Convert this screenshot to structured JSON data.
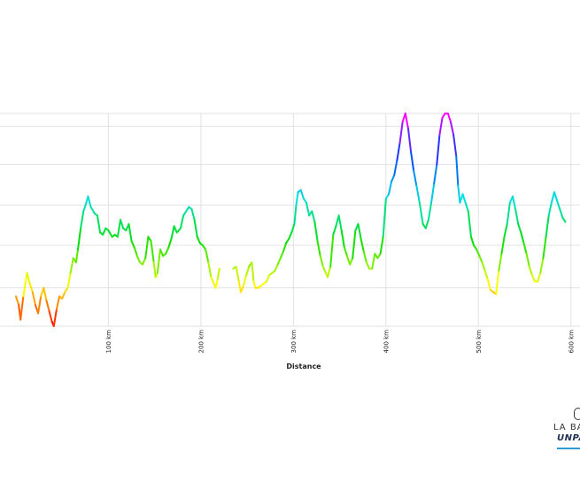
{
  "chart_data": {
    "type": "line",
    "title": "",
    "xlabel": "Distance",
    "ylabel": "",
    "x_unit": "km",
    "xlim": [
      0,
      605
    ],
    "ylim": [
      0,
      100
    ],
    "grid": true,
    "x_ticks": [
      {
        "value": 100,
        "label": "100 km"
      },
      {
        "value": 200,
        "label": "200 km"
      },
      {
        "value": 300,
        "label": "300 km"
      },
      {
        "value": 400,
        "label": "400 km"
      },
      {
        "value": 500,
        "label": "500 km"
      },
      {
        "value": 600,
        "label": "600 km"
      }
    ],
    "y_gridlines": [
      0,
      18,
      38,
      57,
      76,
      94,
      100
    ],
    "color_scale": [
      "#ff0000",
      "#ffff00",
      "#00e000",
      "#00e0e0",
      "#0040ff",
      "#ff00ff"
    ],
    "series": [
      {
        "points": [
          [
            0,
            14
          ],
          [
            3,
            10
          ],
          [
            5,
            3
          ],
          [
            8,
            14
          ],
          [
            12,
            25
          ],
          [
            15,
            20
          ],
          [
            18,
            16
          ],
          [
            21,
            10
          ],
          [
            24,
            6
          ],
          [
            27,
            14
          ],
          [
            30,
            18
          ],
          [
            33,
            12
          ],
          [
            36,
            7
          ],
          [
            39,
            2
          ],
          [
            41,
            0
          ],
          [
            44,
            8
          ],
          [
            47,
            14
          ],
          [
            50,
            13
          ],
          [
            53,
            16
          ],
          [
            56,
            18
          ],
          [
            59,
            25
          ],
          [
            62,
            32
          ],
          [
            65,
            30
          ],
          [
            67,
            36
          ],
          [
            70,
            46
          ],
          [
            73,
            54
          ],
          [
            76,
            58
          ],
          [
            78,
            61
          ],
          [
            81,
            56
          ],
          [
            85,
            53
          ],
          [
            88,
            52
          ],
          [
            91,
            44
          ],
          [
            94,
            43
          ],
          [
            97,
            46
          ],
          [
            100,
            45
          ],
          [
            104,
            42
          ],
          [
            107,
            43
          ],
          [
            110,
            42
          ],
          [
            113,
            50
          ],
          [
            116,
            46
          ],
          [
            119,
            45
          ],
          [
            122,
            48
          ],
          [
            125,
            40
          ],
          [
            128,
            37
          ],
          [
            131,
            33
          ],
          [
            134,
            30
          ],
          [
            137,
            29
          ],
          [
            140,
            32
          ],
          [
            143,
            42
          ],
          [
            146,
            40
          ],
          [
            149,
            30
          ],
          [
            151,
            23
          ],
          [
            153,
            25
          ],
          [
            156,
            36
          ],
          [
            159,
            33
          ],
          [
            162,
            34
          ],
          [
            165,
            37
          ],
          [
            168,
            41
          ],
          [
            171,
            47
          ],
          [
            174,
            44
          ],
          [
            178,
            46
          ],
          [
            181,
            52
          ],
          [
            184,
            54
          ],
          [
            187,
            56
          ],
          [
            190,
            55
          ],
          [
            193,
            50
          ],
          [
            196,
            42
          ],
          [
            199,
            39
          ],
          [
            202,
            38
          ],
          [
            205,
            36
          ],
          [
            208,
            30
          ],
          [
            211,
            23
          ],
          [
            214,
            20
          ],
          [
            216,
            18
          ],
          [
            218,
            22
          ],
          [
            220,
            27
          ]
        ]
      },
      {
        "points": [
          [
            235,
            27
          ],
          [
            238,
            28
          ],
          [
            241,
            21
          ],
          [
            243,
            16
          ],
          [
            246,
            19
          ],
          [
            249,
            24
          ],
          [
            252,
            28
          ],
          [
            255,
            30
          ],
          [
            257,
            21
          ],
          [
            259,
            18
          ],
          [
            262,
            18
          ],
          [
            265,
            19
          ],
          [
            268,
            20
          ],
          [
            271,
            21
          ],
          [
            274,
            24
          ],
          [
            277,
            25
          ],
          [
            280,
            26
          ],
          [
            283,
            29
          ],
          [
            286,
            32
          ],
          [
            289,
            35
          ],
          [
            292,
            39
          ],
          [
            295,
            41
          ],
          [
            298,
            44
          ],
          [
            301,
            48
          ],
          [
            303,
            57
          ],
          [
            305,
            63
          ],
          [
            308,
            64
          ],
          [
            311,
            60
          ],
          [
            314,
            58
          ],
          [
            317,
            52
          ],
          [
            320,
            54
          ],
          [
            323,
            49
          ],
          [
            326,
            40
          ],
          [
            329,
            33
          ],
          [
            332,
            28
          ],
          [
            335,
            25
          ],
          [
            337,
            23
          ],
          [
            340,
            28
          ],
          [
            343,
            43
          ],
          [
            346,
            47
          ],
          [
            349,
            52
          ],
          [
            352,
            45
          ],
          [
            355,
            37
          ],
          [
            358,
            33
          ],
          [
            361,
            29
          ],
          [
            364,
            32
          ],
          [
            367,
            45
          ],
          [
            370,
            48
          ],
          [
            373,
            41
          ],
          [
            376,
            35
          ],
          [
            379,
            30
          ],
          [
            382,
            27
          ],
          [
            385,
            27
          ],
          [
            388,
            34
          ],
          [
            391,
            32
          ],
          [
            394,
            34
          ],
          [
            397,
            42
          ],
          [
            400,
            60
          ],
          [
            403,
            62
          ],
          [
            406,
            68
          ],
          [
            409,
            71
          ],
          [
            412,
            78
          ],
          [
            415,
            86
          ],
          [
            418,
            96
          ],
          [
            421,
            104
          ],
          [
            424,
            93
          ],
          [
            427,
            82
          ],
          [
            430,
            73
          ],
          [
            433,
            66
          ],
          [
            436,
            59
          ],
          [
            440,
            48
          ],
          [
            443,
            46
          ],
          [
            446,
            50
          ],
          [
            449,
            58
          ],
          [
            452,
            67
          ],
          [
            455,
            76
          ],
          [
            458,
            90
          ],
          [
            461,
            98
          ],
          [
            464,
            104
          ],
          [
            467,
            106
          ],
          [
            470,
            96
          ],
          [
            473,
            90
          ],
          [
            476,
            80
          ],
          [
            478,
            66
          ],
          [
            480,
            58
          ],
          [
            483,
            62
          ],
          [
            486,
            58
          ],
          [
            489,
            54
          ],
          [
            492,
            42
          ],
          [
            495,
            38
          ],
          [
            498,
            36
          ],
          [
            501,
            33
          ],
          [
            504,
            30
          ],
          [
            507,
            26
          ],
          [
            510,
            22
          ],
          [
            513,
            17
          ],
          [
            516,
            16
          ],
          [
            519,
            15
          ],
          [
            522,
            26
          ],
          [
            525,
            34
          ],
          [
            528,
            42
          ],
          [
            531,
            48
          ],
          [
            534,
            58
          ],
          [
            537,
            61
          ],
          [
            540,
            55
          ],
          [
            543,
            48
          ],
          [
            546,
            44
          ],
          [
            549,
            39
          ],
          [
            552,
            34
          ],
          [
            555,
            28
          ],
          [
            558,
            24
          ],
          [
            561,
            21
          ],
          [
            564,
            21
          ],
          [
            567,
            25
          ],
          [
            570,
            32
          ],
          [
            573,
            42
          ],
          [
            576,
            52
          ],
          [
            579,
            58
          ],
          [
            582,
            63
          ],
          [
            585,
            59
          ],
          [
            588,
            55
          ],
          [
            591,
            51
          ],
          [
            594,
            49
          ]
        ]
      }
    ]
  },
  "logo": {
    "line1": "LA BA",
    "line2": "UNPA"
  }
}
